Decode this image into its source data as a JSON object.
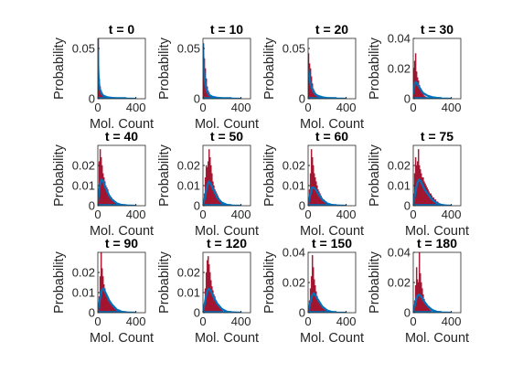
{
  "colors": {
    "histogram": "#A2142F",
    "fit": "#0072BD",
    "axes": "#262626"
  },
  "chart_data": [
    {
      "type": "bar",
      "title": "t = 0",
      "xlabel": "Mol. Count",
      "ylabel": "Probability",
      "xlim": [
        0,
        500
      ],
      "ylim": [
        0,
        0.06
      ],
      "xticks": [
        "0",
        "400"
      ],
      "yticks": [
        "0",
        "0.05"
      ],
      "bin_width": 10,
      "x": [
        0,
        10,
        20,
        30,
        40,
        50,
        60,
        70,
        80,
        90
      ],
      "values": [
        0.06,
        0.02,
        0.012,
        0.008,
        0.006,
        0.004,
        0.003,
        0.002,
        0.0015,
        0.001
      ],
      "fit": {
        "x": [
          0,
          5,
          10,
          20,
          40,
          60,
          100,
          150,
          200,
          300,
          400
        ],
        "y": [
          0.06,
          0.03,
          0.018,
          0.01,
          0.005,
          0.003,
          0.0015,
          0.0008,
          0.0004,
          0.0001,
          0.0
        ]
      }
    },
    {
      "type": "bar",
      "title": "t = 10",
      "xlabel": "Mol. Count",
      "ylabel": "Probability",
      "xlim": [
        0,
        500
      ],
      "ylim": [
        0,
        0.06
      ],
      "xticks": [
        "0",
        "400"
      ],
      "yticks": [
        "0",
        "0.05"
      ],
      "bin_width": 10,
      "x": [
        0,
        10,
        20,
        30,
        40,
        50,
        60,
        70,
        80,
        90,
        100
      ],
      "values": [
        0.055,
        0.04,
        0.03,
        0.02,
        0.012,
        0.008,
        0.006,
        0.004,
        0.003,
        0.002,
        0.0015
      ],
      "fit": {
        "x": [
          0,
          5,
          10,
          20,
          40,
          60,
          100,
          150,
          200,
          300,
          400
        ],
        "y": [
          0.055,
          0.04,
          0.03,
          0.018,
          0.008,
          0.004,
          0.002,
          0.001,
          0.0005,
          0.0001,
          0.0
        ]
      }
    },
    {
      "type": "bar",
      "title": "t = 20",
      "xlabel": "Mol. Count",
      "ylabel": "Probability",
      "xlim": [
        0,
        500
      ],
      "ylim": [
        0,
        0.06
      ],
      "xticks": [
        "0",
        "400"
      ],
      "yticks": [
        "0",
        "0.05"
      ],
      "bin_width": 10,
      "x": [
        0,
        10,
        20,
        30,
        40,
        50,
        60,
        70,
        80,
        90,
        100,
        110,
        120
      ],
      "values": [
        0.045,
        0.035,
        0.03,
        0.022,
        0.015,
        0.01,
        0.008,
        0.006,
        0.004,
        0.003,
        0.002,
        0.0015,
        0.001
      ],
      "fit": {
        "x": [
          0,
          10,
          20,
          30,
          50,
          70,
          100,
          150,
          200,
          300,
          400
        ],
        "y": [
          0.03,
          0.024,
          0.018,
          0.013,
          0.008,
          0.005,
          0.003,
          0.0015,
          0.0007,
          0.0002,
          0.0
        ]
      }
    },
    {
      "type": "bar",
      "title": "t = 30",
      "xlabel": "",
      "ylabel": "Probability",
      "xlim": [
        0,
        500
      ],
      "ylim": [
        0,
        0.04
      ],
      "xticks": [
        "0",
        "400"
      ],
      "yticks": [
        "0",
        "0.02",
        "0.04"
      ],
      "bin_width": 10,
      "x": [
        0,
        10,
        20,
        30,
        40,
        50,
        60,
        70,
        80,
        90,
        100,
        110,
        120,
        130
      ],
      "values": [
        0.02,
        0.025,
        0.03,
        0.018,
        0.014,
        0.012,
        0.009,
        0.007,
        0.005,
        0.004,
        0.003,
        0.002,
        0.0015,
        0.001
      ],
      "fit": {
        "x": [
          0,
          10,
          20,
          30,
          50,
          70,
          100,
          150,
          200,
          300,
          400
        ],
        "y": [
          0.003,
          0.008,
          0.011,
          0.011,
          0.009,
          0.007,
          0.004,
          0.002,
          0.001,
          0.0002,
          0.0
        ]
      }
    },
    {
      "type": "bar",
      "title": "t = 40",
      "xlabel": "Mol. Count",
      "ylabel": "Probability",
      "xlim": [
        0,
        500
      ],
      "ylim": [
        0,
        0.03
      ],
      "xticks": [
        "0",
        "400"
      ],
      "yticks": [
        "0",
        "0.01",
        "0.02"
      ],
      "bin_width": 10,
      "x": [
        0,
        10,
        20,
        30,
        40,
        50,
        60,
        70,
        80,
        90,
        100,
        110,
        120,
        130,
        140,
        150,
        160,
        170,
        180,
        190,
        200
      ],
      "values": [
        0.008,
        0.022,
        0.028,
        0.024,
        0.02,
        0.016,
        0.014,
        0.012,
        0.01,
        0.009,
        0.008,
        0.006,
        0.005,
        0.004,
        0.004,
        0.003,
        0.003,
        0.002,
        0.002,
        0.0015,
        0.001
      ],
      "fit": {
        "x": [
          0,
          10,
          20,
          30,
          40,
          50,
          60,
          70,
          80,
          100,
          120,
          150,
          200,
          250,
          300,
          400
        ],
        "y": [
          0.002,
          0.006,
          0.01,
          0.012,
          0.013,
          0.0125,
          0.012,
          0.0105,
          0.009,
          0.007,
          0.005,
          0.003,
          0.0012,
          0.0004,
          0.0001,
          0.0
        ]
      }
    },
    {
      "type": "bar",
      "title": "t = 50",
      "xlabel": "Mol. Count",
      "ylabel": "Probability",
      "xlim": [
        0,
        500
      ],
      "ylim": [
        0,
        0.03
      ],
      "xticks": [
        "0",
        "400"
      ],
      "yticks": [
        "0",
        "0.01",
        "0.02"
      ],
      "bin_width": 10,
      "x": [
        10,
        20,
        30,
        40,
        50,
        60,
        70,
        80,
        90,
        100,
        110,
        120,
        130,
        140,
        150,
        160,
        170,
        180,
        190,
        200,
        210
      ],
      "values": [
        0.006,
        0.014,
        0.02,
        0.019,
        0.022,
        0.028,
        0.024,
        0.02,
        0.016,
        0.012,
        0.01,
        0.008,
        0.007,
        0.006,
        0.005,
        0.004,
        0.003,
        0.0025,
        0.002,
        0.0015,
        0.001
      ],
      "fit": {
        "x": [
          0,
          20,
          40,
          60,
          80,
          100,
          120,
          150,
          200,
          250,
          300,
          400
        ],
        "y": [
          0.0005,
          0.004,
          0.009,
          0.012,
          0.011,
          0.009,
          0.007,
          0.004,
          0.0015,
          0.0005,
          0.0001,
          0.0
        ]
      }
    },
    {
      "type": "bar",
      "title": "t = 60",
      "xlabel": "Mol. Count",
      "ylabel": "Probability",
      "xlim": [
        0,
        500
      ],
      "ylim": [
        0,
        0.03
      ],
      "xticks": [
        "0",
        "400"
      ],
      "yticks": [
        "0",
        "0.01",
        "0.02"
      ],
      "bin_width": 10,
      "x": [
        10,
        20,
        30,
        40,
        50,
        60,
        70,
        80,
        90,
        100,
        110,
        120,
        130,
        140,
        150,
        160,
        170,
        180,
        190,
        200
      ],
      "values": [
        0.008,
        0.016,
        0.028,
        0.024,
        0.02,
        0.016,
        0.014,
        0.012,
        0.01,
        0.008,
        0.007,
        0.006,
        0.005,
        0.004,
        0.003,
        0.003,
        0.002,
        0.002,
        0.0015,
        0.001
      ],
      "fit": {
        "x": [
          0,
          20,
          40,
          60,
          80,
          100,
          120,
          150,
          200,
          250,
          300,
          400
        ],
        "y": [
          0.001,
          0.005,
          0.009,
          0.009,
          0.008,
          0.0065,
          0.005,
          0.003,
          0.0012,
          0.0004,
          0.0001,
          0.0
        ]
      }
    },
    {
      "type": "bar",
      "title": "t = 75",
      "xlabel": "Mol. Count",
      "ylabel": "Probability",
      "xlim": [
        0,
        500
      ],
      "ylim": [
        0,
        0.03
      ],
      "xticks": [
        "0",
        "400"
      ],
      "yticks": [
        "0",
        "0.01",
        "0.02"
      ],
      "bin_width": 10,
      "x": [
        0,
        10,
        20,
        30,
        40,
        50,
        60,
        70,
        80,
        90,
        100,
        110,
        120,
        130,
        140,
        150,
        160,
        170,
        180,
        190,
        200,
        210,
        220,
        230,
        240,
        250,
        260,
        270,
        280
      ],
      "values": [
        0.006,
        0.016,
        0.024,
        0.02,
        0.022,
        0.028,
        0.02,
        0.018,
        0.016,
        0.014,
        0.014,
        0.012,
        0.011,
        0.01,
        0.009,
        0.008,
        0.007,
        0.006,
        0.006,
        0.005,
        0.004,
        0.004,
        0.003,
        0.003,
        0.002,
        0.002,
        0.0015,
        0.001,
        0.001
      ],
      "fit": {
        "x": [
          0,
          20,
          40,
          60,
          80,
          100,
          120,
          150,
          200,
          250,
          300,
          350,
          400
        ],
        "y": [
          0.001,
          0.006,
          0.011,
          0.013,
          0.012,
          0.01,
          0.008,
          0.006,
          0.003,
          0.0012,
          0.0004,
          0.0001,
          0.0
        ]
      }
    },
    {
      "type": "bar",
      "title": "t = 90",
      "xlabel": "Mol. Count",
      "ylabel": "Probability",
      "xlim": [
        0,
        500
      ],
      "ylim": [
        0,
        0.03
      ],
      "xticks": [
        "0",
        "400"
      ],
      "yticks": [
        "0",
        "0.01",
        "0.02"
      ],
      "bin_width": 10,
      "x": [
        10,
        20,
        30,
        40,
        50,
        60,
        70,
        80,
        90,
        100,
        110,
        120,
        130,
        140,
        150,
        160,
        170,
        180,
        190,
        200
      ],
      "values": [
        0.008,
        0.018,
        0.03,
        0.022,
        0.018,
        0.014,
        0.012,
        0.01,
        0.009,
        0.008,
        0.007,
        0.006,
        0.005,
        0.004,
        0.0035,
        0.003,
        0.0025,
        0.002,
        0.0015,
        0.001
      ],
      "fit": {
        "x": [
          0,
          20,
          40,
          60,
          80,
          100,
          120,
          150,
          200,
          250,
          300,
          400
        ],
        "y": [
          0.001,
          0.006,
          0.011,
          0.012,
          0.01,
          0.008,
          0.006,
          0.004,
          0.0015,
          0.0005,
          0.0001,
          0.0
        ]
      }
    },
    {
      "type": "bar",
      "title": "t = 120",
      "xlabel": "Mol. Count",
      "ylabel": "Probability",
      "xlim": [
        0,
        500
      ],
      "ylim": [
        0,
        0.03
      ],
      "xticks": [
        "0",
        "400"
      ],
      "yticks": [
        "0",
        "0.01",
        "0.02"
      ],
      "bin_width": 10,
      "x": [
        10,
        20,
        30,
        40,
        50,
        60,
        70,
        80,
        90,
        100,
        110,
        120,
        130,
        140,
        150,
        160,
        170,
        180,
        190,
        200
      ],
      "values": [
        0.004,
        0.012,
        0.02,
        0.026,
        0.028,
        0.024,
        0.02,
        0.016,
        0.013,
        0.011,
        0.009,
        0.008,
        0.006,
        0.005,
        0.004,
        0.0035,
        0.003,
        0.002,
        0.0015,
        0.001
      ],
      "fit": {
        "x": [
          0,
          20,
          40,
          60,
          80,
          100,
          120,
          150,
          200,
          250,
          300,
          400
        ],
        "y": [
          0.0005,
          0.005,
          0.01,
          0.012,
          0.011,
          0.009,
          0.007,
          0.0045,
          0.0018,
          0.0006,
          0.0002,
          0.0
        ]
      }
    },
    {
      "type": "bar",
      "title": "t = 150",
      "xlabel": "Mol. Count",
      "ylabel": "Probability",
      "xlim": [
        0,
        500
      ],
      "ylim": [
        0,
        0.04
      ],
      "xticks": [
        "0",
        "400"
      ],
      "yticks": [
        "0",
        "0.02",
        "0.04"
      ],
      "bin_width": 10,
      "x": [
        10,
        20,
        30,
        40,
        50,
        60,
        70,
        80,
        90,
        100,
        110,
        120,
        130,
        140,
        150,
        160,
        170,
        180
      ],
      "values": [
        0.008,
        0.016,
        0.024,
        0.038,
        0.03,
        0.022,
        0.018,
        0.014,
        0.011,
        0.009,
        0.007,
        0.006,
        0.005,
        0.004,
        0.003,
        0.0025,
        0.002,
        0.0015
      ],
      "fit": {
        "x": [
          0,
          20,
          40,
          60,
          80,
          100,
          120,
          150,
          200,
          250,
          300,
          400
        ],
        "y": [
          0.001,
          0.006,
          0.011,
          0.013,
          0.011,
          0.009,
          0.007,
          0.004,
          0.0015,
          0.0005,
          0.0001,
          0.0
        ]
      }
    },
    {
      "type": "bar",
      "title": "t = 180",
      "xlabel": "Mol. Count",
      "ylabel": "Probability",
      "xlim": [
        0,
        500
      ],
      "ylim": [
        0,
        0.04
      ],
      "xticks": [
        "0",
        "400"
      ],
      "yticks": [
        "0",
        "0.02",
        "0.04"
      ],
      "bin_width": 10,
      "x": [
        10,
        20,
        30,
        40,
        50,
        60,
        70,
        80,
        90,
        100,
        110,
        120,
        130,
        140,
        150,
        160,
        170,
        180
      ],
      "values": [
        0.008,
        0.018,
        0.03,
        0.022,
        0.02,
        0.04,
        0.026,
        0.02,
        0.016,
        0.012,
        0.009,
        0.007,
        0.006,
        0.005,
        0.004,
        0.003,
        0.002,
        0.0015
      ],
      "fit": {
        "x": [
          0,
          20,
          40,
          60,
          80,
          100,
          120,
          150,
          200,
          250,
          300,
          400
        ],
        "y": [
          0.001,
          0.006,
          0.011,
          0.012,
          0.011,
          0.009,
          0.007,
          0.0045,
          0.0018,
          0.0006,
          0.0002,
          0.0
        ]
      }
    }
  ]
}
